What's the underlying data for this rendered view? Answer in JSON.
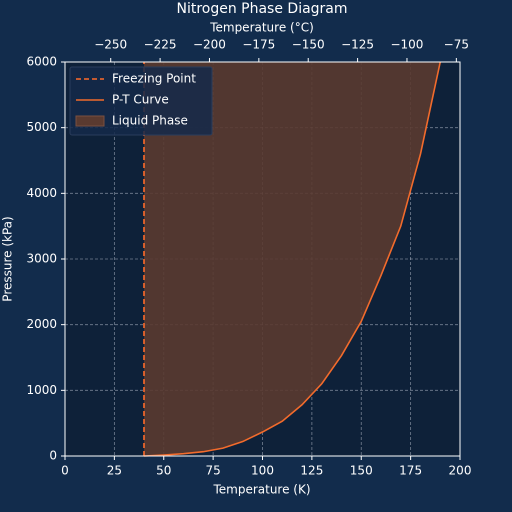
{
  "chart_data": {
    "type": "phase",
    "title": "Nitrogen Phase Diagram",
    "xlabel": "Temperature (K)",
    "ylabel": "Pressure (kPa)",
    "x2label": "Temperature (°C)",
    "xlim": [
      0,
      200
    ],
    "ylim": [
      0,
      6000
    ],
    "x2lim": [
      -273.15,
      -73.15
    ],
    "xticks": [
      0,
      25,
      50,
      75,
      100,
      125,
      150,
      175,
      200
    ],
    "yticks": [
      0,
      1000,
      2000,
      3000,
      4000,
      5000,
      6000
    ],
    "x2ticks": [
      {
        "value": -250,
        "label": "−250"
      },
      {
        "value": -225,
        "label": "−225"
      },
      {
        "value": -200,
        "label": "−200"
      },
      {
        "value": -175,
        "label": "−175"
      },
      {
        "value": -150,
        "label": "−150"
      },
      {
        "value": -125,
        "label": "−125"
      },
      {
        "value": -100,
        "label": "−100"
      },
      {
        "value": -75,
        "label": "−75"
      }
    ],
    "grid": true,
    "legend": "upper left",
    "series": [
      {
        "name": "Freezing Point",
        "color": "#ff6a2a",
        "style": "dashed",
        "x": [
          40,
          40
        ],
        "values": [
          0,
          6000
        ]
      },
      {
        "name": "P-T Curve",
        "color": "#f26b2c",
        "style": "solid",
        "x": [
          40,
          50,
          60,
          70,
          80,
          90,
          100,
          110,
          120,
          130,
          140,
          150,
          160,
          170,
          180,
          190
        ],
        "values": [
          0,
          15,
          35,
          65,
          120,
          220,
          365,
          530,
          780,
          1100,
          1530,
          2050,
          2750,
          3500,
          4600,
          6000
        ]
      },
      {
        "name": "Liquid Phase",
        "color": "#5a3a30",
        "style": "fill"
      }
    ]
  }
}
